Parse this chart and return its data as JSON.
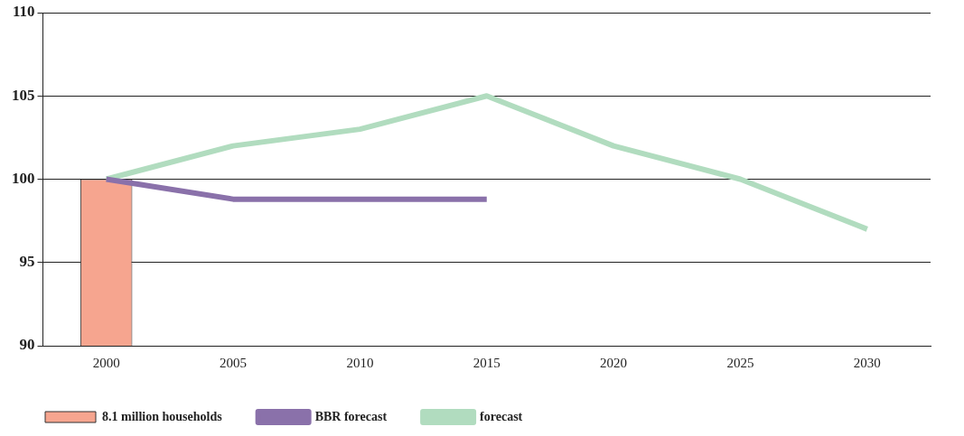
{
  "chart_data": {
    "type": "line",
    "categories": [
      "2000",
      "2005",
      "2010",
      "2015",
      "2020",
      "2025",
      "2030"
    ],
    "series": [
      {
        "name": "8.1 million households",
        "type": "bar",
        "color": "#f6a58f",
        "values": [
          100,
          null,
          null,
          null,
          null,
          null,
          null
        ]
      },
      {
        "name": "BBR forecast",
        "color": "#8a71aa",
        "values": [
          100,
          98.8,
          98.8,
          98.8,
          null,
          null,
          null
        ]
      },
      {
        "name": "forecast",
        "color": "#b1dcbf",
        "values": [
          100,
          102,
          103,
          105,
          102,
          100,
          97
        ]
      }
    ],
    "ylim": [
      90,
      110
    ],
    "yticks": [
      90,
      95,
      100,
      105,
      110
    ],
    "grid": "y",
    "legend": "bottom",
    "marker": "none",
    "line_style": "solid"
  }
}
